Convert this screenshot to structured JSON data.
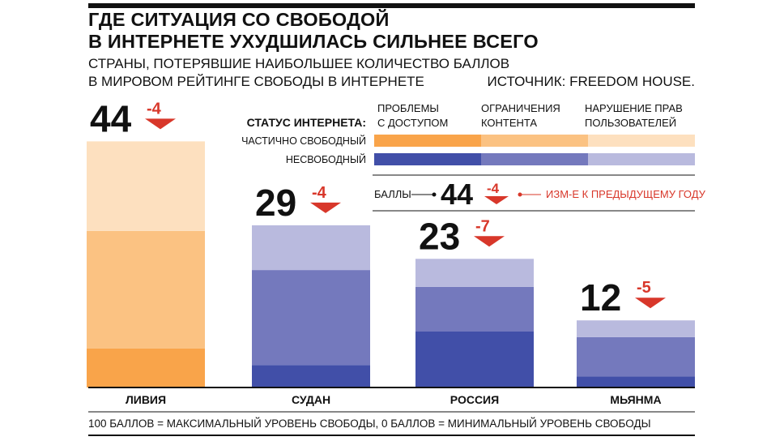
{
  "header": {
    "title_line1": "Где ситуация со свободой",
    "title_line2": "в интернете ухудшилась сильнее всего",
    "subtitle_line1": "Страны, потерявшие наибольшее количество баллов",
    "subtitle_line2": "в мировом рейтинге свободы в интернете",
    "source": "Источник: Freedom House."
  },
  "legend": {
    "status_title": "Статус интернета:",
    "columns": [
      {
        "line1": "Проблемы",
        "line2": "с доступом"
      },
      {
        "line1": "Ограничения",
        "line2": "контента"
      },
      {
        "line1": "Нарушение прав",
        "line2": "пользователей"
      }
    ],
    "rows": [
      {
        "label": "Частично свободный",
        "colors": [
          "#f9a44a",
          "#fbc282",
          "#fde0bf"
        ]
      },
      {
        "label": "Несвободный",
        "colors": [
          "#414fa8",
          "#7479bd",
          "#b9bade"
        ]
      }
    ],
    "key": {
      "score_label": "Баллы",
      "example_value": "44",
      "example_change": "-4",
      "change_label": "Изм-е к предыдущему году"
    }
  },
  "chart_data": {
    "type": "bar",
    "stacked": true,
    "title": "Где ситуация со свободой в интернете ухудшилась сильнее всего",
    "subtitle": "Страны, потерявшие наибольшее количество баллов в мировом рейтинге свободы в интернете",
    "categories": [
      "Ливия",
      "Судан",
      "Россия",
      "Мьянма"
    ],
    "totals": [
      44,
      29,
      23,
      12
    ],
    "changes": [
      "-4",
      "-4",
      "-7",
      "-5"
    ],
    "status": [
      "partly_free",
      "not_free",
      "not_free",
      "not_free"
    ],
    "series": [
      {
        "name": "Проблемы с доступом",
        "values": [
          7,
          4,
          10,
          2
        ]
      },
      {
        "name": "Ограничения контента",
        "values": [
          21,
          17,
          8,
          7
        ]
      },
      {
        "name": "Нарушение прав пользователей",
        "values": [
          16,
          8,
          5,
          3
        ]
      }
    ],
    "ylim": [
      0,
      44
    ]
  },
  "footer": {
    "note": "100 баллов = максимальный уровень свободы, 0 баллов = минимальный уровень свободы"
  }
}
